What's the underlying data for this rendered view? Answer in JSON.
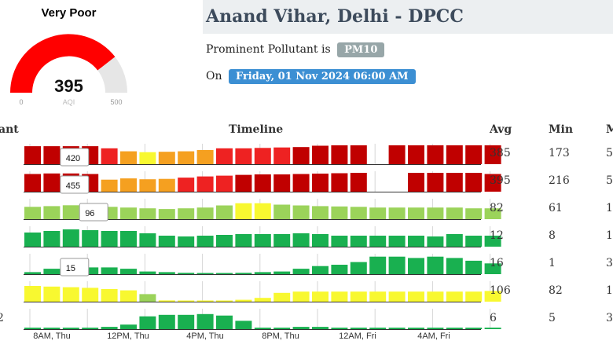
{
  "gauge": {
    "status": "Very Poor",
    "value": "395",
    "min_label": "0",
    "max_label": "500",
    "unit_label": "AQI",
    "level": 0.79,
    "color": "#ff0000",
    "track_color": "#e6e6e6"
  },
  "station": {
    "title": "Anand Vihar, Delhi - DPCC",
    "pollutant_prefix": "Prominent Pollutant is",
    "pollutant": "PM10",
    "date_prefix": "On",
    "date": "Friday, 01 Nov 2024 06:00 AM"
  },
  "table": {
    "headers": {
      "pollutant": "ant",
      "timeline": "Timeline",
      "avg": "Avg",
      "min": "Min",
      "max": "M"
    },
    "rows": [
      {
        "avg": "385",
        "min": "173",
        "max": "5"
      },
      {
        "avg": "395",
        "min": "216",
        "max": "5"
      },
      {
        "avg": "82",
        "min": "61",
        "max": "1"
      },
      {
        "avg": "12",
        "min": "8",
        "max": "1"
      },
      {
        "avg": "16",
        "min": "1",
        "max": "3"
      },
      {
        "avg": "106",
        "min": "82",
        "max": "1"
      },
      {
        "avg": "6",
        "min": "5",
        "max": "3"
      }
    ],
    "left_marks": [
      "",
      "",
      "",
      "",
      "",
      "",
      "2"
    ]
  },
  "chart_data": {
    "type": "bar",
    "x_ticks": [
      "8AM, Thu",
      "12PM, Thu",
      "4PM, Thu",
      "8PM, Thu",
      "12AM, Fri",
      "4AM, Fri"
    ],
    "colors": {
      "severe": "#c00000",
      "very_poor": "#ee2222",
      "poor": "#f5a020",
      "moderate": "#f8f830",
      "satisfactory": "#9bd35a",
      "good": "#19b050"
    },
    "series": [
      {
        "tooltip": "420",
        "tooltip_index": 2,
        "max_value": 440,
        "values": [
          420,
          420,
          420,
          420,
          370,
          300,
          280,
          290,
          300,
          330,
          370,
          370,
          380,
          390,
          400,
          430,
          440,
          440,
          null,
          440,
          440,
          440,
          440,
          440,
          440
        ],
        "levels": [
          "severe",
          "severe",
          "severe",
          "severe",
          "very_poor",
          "poor",
          "moderate",
          "poor",
          "poor",
          "poor",
          "very_poor",
          "very_poor",
          "very_poor",
          "very_poor",
          "severe",
          "severe",
          "severe",
          "severe",
          null,
          "severe",
          "severe",
          "severe",
          "severe",
          "severe",
          "severe"
        ]
      },
      {
        "tooltip": "455",
        "tooltip_index": 2,
        "max_value": 470,
        "values": [
          440,
          455,
          455,
          440,
          300,
          330,
          310,
          320,
          350,
          380,
          400,
          420,
          430,
          430,
          440,
          450,
          460,
          470,
          null,
          null,
          470,
          470,
          470,
          470,
          440
        ],
        "levels": [
          "severe",
          "severe",
          "severe",
          "severe",
          "poor",
          "poor",
          "poor",
          "poor",
          "very_poor",
          "very_poor",
          "very_poor",
          "severe",
          "severe",
          "severe",
          "severe",
          "severe",
          "severe",
          "severe",
          null,
          null,
          "severe",
          "severe",
          "severe",
          "severe",
          "severe"
        ]
      },
      {
        "tooltip": "96",
        "tooltip_index": 3,
        "max_value": 130,
        "values": [
          85,
          90,
          96,
          96,
          85,
          80,
          75,
          70,
          75,
          80,
          95,
          110,
          110,
          100,
          95,
          90,
          88,
          85,
          80,
          80,
          80,
          80,
          80,
          75,
          75
        ],
        "levels": [
          "satisfactory",
          "satisfactory",
          "satisfactory",
          "satisfactory",
          "satisfactory",
          "satisfactory",
          "satisfactory",
          "satisfactory",
          "satisfactory",
          "satisfactory",
          "satisfactory",
          "moderate",
          "moderate",
          "satisfactory",
          "satisfactory",
          "satisfactory",
          "satisfactory",
          "satisfactory",
          "satisfactory",
          "satisfactory",
          "satisfactory",
          "satisfactory",
          "satisfactory",
          "satisfactory",
          "satisfactory"
        ]
      },
      {
        "tooltip": "",
        "tooltip_index": -1,
        "max_value": 24,
        "values": [
          18,
          20,
          22,
          21,
          20,
          20,
          17,
          14,
          13,
          14,
          15,
          16,
          16,
          16,
          17,
          16,
          14,
          14,
          14,
          14,
          14,
          13,
          16,
          14,
          14
        ],
        "levels": [
          "good",
          "good",
          "good",
          "good",
          "good",
          "good",
          "good",
          "good",
          "good",
          "good",
          "good",
          "good",
          "good",
          "good",
          "good",
          "good",
          "good",
          "good",
          "good",
          "good",
          "good",
          "good",
          "good",
          "good",
          "good"
        ]
      },
      {
        "tooltip": "15",
        "tooltip_index": 2,
        "max_value": 28,
        "values": [
          3,
          8,
          15,
          10,
          10,
          8,
          4,
          3,
          2,
          1,
          1,
          2,
          3,
          4,
          8,
          12,
          14,
          18,
          26,
          26,
          24,
          26,
          24,
          20,
          16
        ],
        "levels": [
          "good",
          "good",
          "good",
          "good",
          "good",
          "good",
          "good",
          "good",
          "good",
          "good",
          "good",
          "good",
          "good",
          "good",
          "good",
          "good",
          "good",
          "good",
          "good",
          "good",
          "good",
          "good",
          "good",
          "good",
          "good"
        ]
      },
      {
        "tooltip": "",
        "tooltip_index": -1,
        "max_value": 150,
        "values": [
          125,
          120,
          115,
          110,
          100,
          90,
          60,
          10,
          5,
          5,
          5,
          15,
          30,
          70,
          80,
          80,
          80,
          80,
          80,
          80,
          80,
          80,
          80,
          80,
          85
        ],
        "levels": [
          "moderate",
          "moderate",
          "moderate",
          "moderate",
          "moderate",
          "moderate",
          "satisfactory",
          "moderate",
          "moderate",
          "moderate",
          "moderate",
          "moderate",
          "moderate",
          "moderate",
          "moderate",
          "moderate",
          "moderate",
          "moderate",
          "moderate",
          "moderate",
          "moderate",
          "moderate",
          "moderate",
          "moderate",
          "moderate"
        ]
      },
      {
        "tooltip": "",
        "tooltip_index": -1,
        "max_value": 25,
        "values": [
          2,
          2,
          2,
          2,
          3,
          6,
          17,
          19,
          19,
          20,
          18,
          11,
          2,
          2,
          3,
          3,
          2,
          2,
          2,
          2,
          2,
          2,
          2,
          2,
          2
        ],
        "levels": [
          "good",
          "good",
          "good",
          "good",
          "good",
          "good",
          "good",
          "good",
          "good",
          "good",
          "good",
          "good",
          "good",
          "good",
          "good",
          "good",
          "good",
          "good",
          "good",
          "good",
          "good",
          "good",
          "good",
          "good",
          "good"
        ]
      }
    ]
  }
}
